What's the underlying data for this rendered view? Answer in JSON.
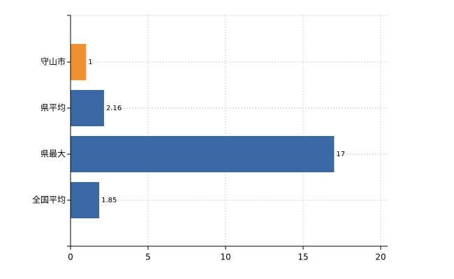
{
  "chart_data": {
    "type": "bar",
    "orientation": "horizontal",
    "categories": [
      "守山市",
      "県平均",
      "県最大",
      "全国平均"
    ],
    "values": [
      1,
      2.16,
      17,
      1.85
    ],
    "colors": [
      "#ef9033",
      "#3a69a6",
      "#3a69a6",
      "#3a69a6"
    ],
    "xlim": [
      0,
      20
    ],
    "xticks": [
      0,
      5,
      10,
      15,
      20
    ],
    "grid": true
  }
}
